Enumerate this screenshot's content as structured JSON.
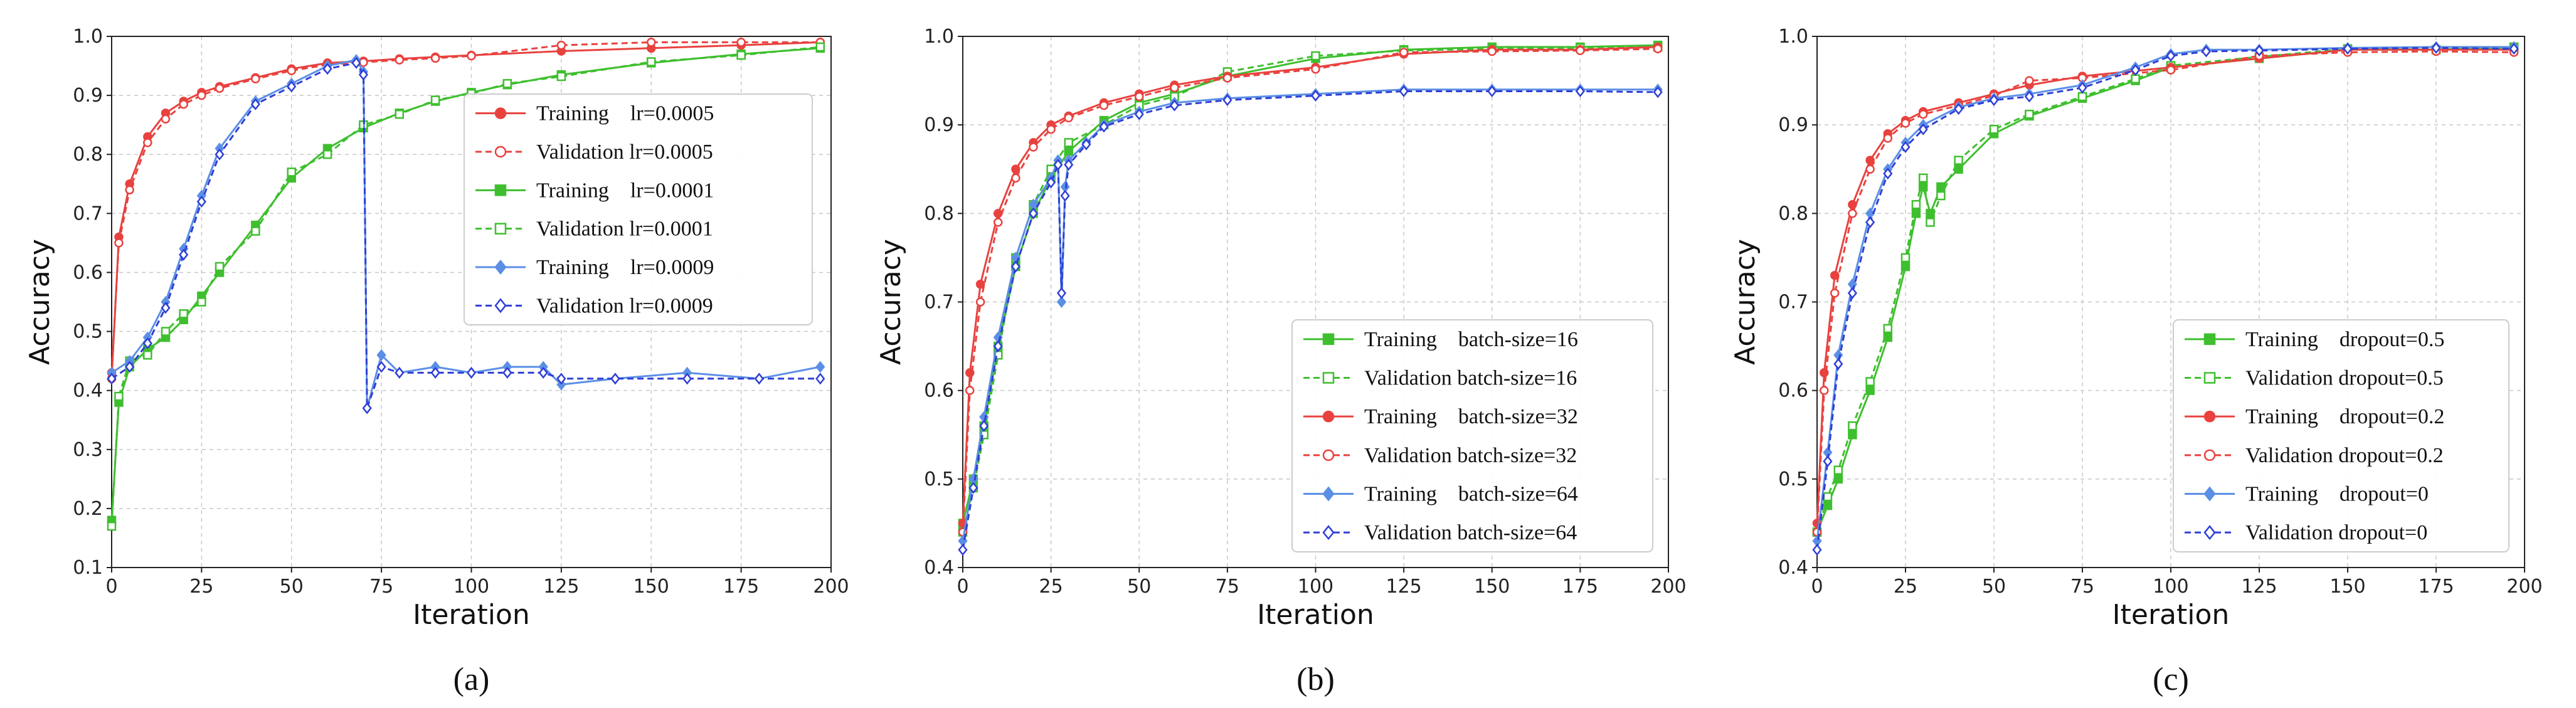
{
  "chart_data": [
    {
      "type": "line",
      "panel_label": "(a)",
      "xlabel": "Iteration",
      "ylabel": "Accuracy",
      "xlim": [
        0,
        200
      ],
      "ylim": [
        0.1,
        1.0
      ],
      "xticks": [
        "0",
        "25",
        "50",
        "75",
        "100",
        "125",
        "150",
        "175",
        "200"
      ],
      "yticks": [
        "0.1",
        "0.2",
        "0.3",
        "0.4",
        "0.5",
        "0.6",
        "0.7",
        "0.8",
        "0.9",
        "1.0"
      ],
      "grid": true,
      "legend_position": "center-right",
      "series": [
        {
          "name": "Training    lr=0.0005",
          "color": "#e8423f",
          "marker": "circle",
          "filled": true,
          "dashed": false,
          "x": [
            0,
            2,
            5,
            10,
            15,
            20,
            25,
            30,
            40,
            50,
            60,
            70,
            80,
            90,
            100,
            125,
            150,
            175,
            197
          ],
          "y": [
            0.42,
            0.66,
            0.75,
            0.83,
            0.87,
            0.89,
            0.905,
            0.915,
            0.93,
            0.945,
            0.955,
            0.958,
            0.962,
            0.965,
            0.968,
            0.975,
            0.98,
            0.985,
            0.99
          ]
        },
        {
          "name": "Validation lr=0.0005",
          "color": "#e8423f",
          "marker": "circle",
          "filled": false,
          "dashed": true,
          "x": [
            0,
            2,
            5,
            10,
            15,
            20,
            25,
            30,
            40,
            50,
            60,
            70,
            80,
            90,
            100,
            125,
            150,
            175,
            197
          ],
          "y": [
            0.43,
            0.65,
            0.74,
            0.82,
            0.86,
            0.885,
            0.9,
            0.912,
            0.928,
            0.942,
            0.952,
            0.956,
            0.96,
            0.963,
            0.967,
            0.985,
            0.99,
            0.99,
            0.99
          ]
        },
        {
          "name": "Training    lr=0.0001",
          "color": "#3fbf2f",
          "marker": "square",
          "filled": true,
          "dashed": false,
          "x": [
            0,
            2,
            5,
            10,
            15,
            20,
            25,
            30,
            40,
            50,
            60,
            70,
            80,
            90,
            100,
            110,
            125,
            150,
            175,
            197
          ],
          "y": [
            0.18,
            0.38,
            0.44,
            0.47,
            0.49,
            0.52,
            0.56,
            0.6,
            0.68,
            0.76,
            0.81,
            0.845,
            0.87,
            0.89,
            0.905,
            0.918,
            0.935,
            0.955,
            0.97,
            0.98
          ]
        },
        {
          "name": "Validation lr=0.0001",
          "color": "#3fbf2f",
          "marker": "square",
          "filled": false,
          "dashed": true,
          "x": [
            0,
            2,
            5,
            10,
            15,
            20,
            25,
            30,
            40,
            50,
            60,
            70,
            80,
            90,
            100,
            110,
            125,
            150,
            175,
            197
          ],
          "y": [
            0.17,
            0.39,
            0.45,
            0.46,
            0.5,
            0.53,
            0.55,
            0.61,
            0.67,
            0.77,
            0.8,
            0.85,
            0.868,
            0.892,
            0.903,
            0.92,
            0.932,
            0.957,
            0.968,
            0.982
          ]
        },
        {
          "name": "Training    lr=0.0009",
          "color": "#5b8fe6",
          "marker": "diamond",
          "filled": true,
          "dashed": false,
          "x": [
            0,
            5,
            10,
            15,
            20,
            25,
            30,
            40,
            50,
            60,
            68,
            70,
            71,
            75,
            80,
            90,
            100,
            110,
            120,
            125,
            140,
            160,
            180,
            197
          ],
          "y": [
            0.43,
            0.45,
            0.49,
            0.55,
            0.64,
            0.73,
            0.81,
            0.89,
            0.92,
            0.95,
            0.96,
            0.94,
            0.37,
            0.46,
            0.43,
            0.44,
            0.43,
            0.44,
            0.44,
            0.41,
            0.42,
            0.43,
            0.42,
            0.44
          ]
        },
        {
          "name": "Validation lr=0.0009",
          "color": "#2f3fd6",
          "marker": "diamond",
          "filled": false,
          "dashed": true,
          "x": [
            0,
            5,
            10,
            15,
            20,
            25,
            30,
            40,
            50,
            60,
            68,
            70,
            71,
            75,
            80,
            90,
            100,
            110,
            120,
            125,
            140,
            160,
            180,
            197
          ],
          "y": [
            0.42,
            0.44,
            0.48,
            0.54,
            0.63,
            0.72,
            0.8,
            0.885,
            0.915,
            0.945,
            0.955,
            0.935,
            0.37,
            0.44,
            0.43,
            0.43,
            0.43,
            0.43,
            0.43,
            0.42,
            0.42,
            0.42,
            0.42,
            0.42
          ]
        }
      ]
    },
    {
      "type": "line",
      "panel_label": "(b)",
      "xlabel": "Iteration",
      "ylabel": "Accuracy",
      "xlim": [
        0,
        200
      ],
      "ylim": [
        0.4,
        1.0
      ],
      "xticks": [
        "0",
        "25",
        "50",
        "75",
        "100",
        "125",
        "150",
        "175",
        "200"
      ],
      "yticks": [
        "0.4",
        "0.5",
        "0.6",
        "0.7",
        "0.8",
        "0.9",
        "1.0"
      ],
      "grid": true,
      "legend_position": "bottom-right",
      "series": [
        {
          "name": "Training    batch-size=16",
          "color": "#3fbf2f",
          "marker": "square",
          "filled": true,
          "dashed": false,
          "x": [
            0,
            3,
            6,
            10,
            15,
            20,
            25,
            30,
            40,
            50,
            60,
            75,
            100,
            125,
            150,
            175,
            197
          ],
          "y": [
            0.45,
            0.5,
            0.56,
            0.65,
            0.74,
            0.8,
            0.84,
            0.87,
            0.905,
            0.925,
            0.935,
            0.955,
            0.975,
            0.985,
            0.988,
            0.988,
            0.99
          ]
        },
        {
          "name": "Validation batch-size=16",
          "color": "#3fbf2f",
          "marker": "square",
          "filled": false,
          "dashed": true,
          "x": [
            0,
            3,
            6,
            10,
            15,
            20,
            25,
            30,
            40,
            50,
            60,
            75,
            100,
            125,
            150,
            175,
            197
          ],
          "y": [
            0.44,
            0.49,
            0.55,
            0.64,
            0.75,
            0.81,
            0.85,
            0.88,
            0.9,
            0.922,
            0.932,
            0.96,
            0.978,
            0.984,
            0.986,
            0.987,
            0.988
          ]
        },
        {
          "name": "Training    batch-size=32",
          "color": "#e8423f",
          "marker": "circle",
          "filled": true,
          "dashed": false,
          "x": [
            0,
            2,
            5,
            10,
            15,
            20,
            25,
            30,
            40,
            50,
            60,
            75,
            100,
            125,
            150,
            175,
            197
          ],
          "y": [
            0.45,
            0.62,
            0.72,
            0.8,
            0.85,
            0.88,
            0.9,
            0.91,
            0.925,
            0.935,
            0.945,
            0.955,
            0.965,
            0.98,
            0.985,
            0.985,
            0.988
          ]
        },
        {
          "name": "Validation batch-size=32",
          "color": "#e8423f",
          "marker": "circle",
          "filled": false,
          "dashed": true,
          "x": [
            0,
            2,
            5,
            10,
            15,
            20,
            25,
            30,
            40,
            50,
            60,
            75,
            100,
            125,
            150,
            175,
            197
          ],
          "y": [
            0.44,
            0.6,
            0.7,
            0.79,
            0.84,
            0.875,
            0.895,
            0.908,
            0.922,
            0.932,
            0.942,
            0.953,
            0.963,
            0.982,
            0.983,
            0.984,
            0.986
          ]
        },
        {
          "name": "Training    batch-size=64",
          "color": "#5b8fe6",
          "marker": "diamond",
          "filled": true,
          "dashed": false,
          "x": [
            0,
            3,
            6,
            10,
            15,
            20,
            25,
            27,
            28,
            29,
            30,
            35,
            40,
            50,
            60,
            75,
            100,
            125,
            150,
            175,
            197
          ],
          "y": [
            0.43,
            0.5,
            0.57,
            0.66,
            0.75,
            0.81,
            0.84,
            0.86,
            0.7,
            0.83,
            0.86,
            0.88,
            0.9,
            0.915,
            0.925,
            0.93,
            0.935,
            0.94,
            0.94,
            0.94,
            0.94
          ]
        },
        {
          "name": "Validation batch-size=64",
          "color": "#2f3fd6",
          "marker": "diamond",
          "filled": false,
          "dashed": true,
          "x": [
            0,
            3,
            6,
            10,
            15,
            20,
            25,
            27,
            28,
            29,
            30,
            35,
            40,
            50,
            60,
            75,
            100,
            125,
            150,
            175,
            197
          ],
          "y": [
            0.42,
            0.49,
            0.56,
            0.65,
            0.74,
            0.8,
            0.835,
            0.855,
            0.71,
            0.82,
            0.855,
            0.878,
            0.898,
            0.912,
            0.922,
            0.928,
            0.933,
            0.938,
            0.938,
            0.938,
            0.937
          ]
        }
      ]
    },
    {
      "type": "line",
      "panel_label": "(c)",
      "xlabel": "Iteration",
      "ylabel": "Accuracy",
      "xlim": [
        0,
        200
      ],
      "ylim": [
        0.4,
        1.0
      ],
      "xticks": [
        "0",
        "25",
        "50",
        "75",
        "100",
        "125",
        "150",
        "175",
        "200"
      ],
      "yticks": [
        "0.4",
        "0.5",
        "0.6",
        "0.7",
        "0.8",
        "0.9",
        "1.0"
      ],
      "grid": true,
      "legend_position": "bottom-right",
      "series": [
        {
          "name": "Training    dropout=0.5",
          "color": "#3fbf2f",
          "marker": "square",
          "filled": true,
          "dashed": false,
          "x": [
            0,
            3,
            6,
            10,
            15,
            20,
            25,
            28,
            30,
            32,
            35,
            40,
            50,
            60,
            75,
            90,
            100,
            125,
            150,
            175,
            197
          ],
          "y": [
            0.44,
            0.47,
            0.5,
            0.55,
            0.6,
            0.66,
            0.74,
            0.8,
            0.83,
            0.8,
            0.83,
            0.85,
            0.89,
            0.91,
            0.93,
            0.95,
            0.965,
            0.975,
            0.985,
            0.985,
            0.988
          ]
        },
        {
          "name": "Validation dropout=0.5",
          "color": "#3fbf2f",
          "marker": "square",
          "filled": false,
          "dashed": true,
          "x": [
            0,
            3,
            6,
            10,
            15,
            20,
            25,
            28,
            30,
            32,
            35,
            40,
            50,
            60,
            75,
            90,
            100,
            125,
            150,
            175,
            197
          ],
          "y": [
            0.44,
            0.48,
            0.51,
            0.56,
            0.61,
            0.67,
            0.75,
            0.81,
            0.84,
            0.79,
            0.82,
            0.86,
            0.895,
            0.912,
            0.932,
            0.952,
            0.967,
            0.977,
            0.986,
            0.985,
            0.987
          ]
        },
        {
          "name": "Training    dropout=0.2",
          "color": "#e8423f",
          "marker": "circle",
          "filled": true,
          "dashed": false,
          "x": [
            0,
            2,
            5,
            10,
            15,
            20,
            25,
            30,
            40,
            50,
            60,
            75,
            100,
            125,
            150,
            175,
            197
          ],
          "y": [
            0.45,
            0.62,
            0.73,
            0.81,
            0.86,
            0.89,
            0.905,
            0.915,
            0.925,
            0.935,
            0.945,
            0.955,
            0.965,
            0.975,
            0.985,
            0.985,
            0.985
          ]
        },
        {
          "name": "Validation dropout=0.2",
          "color": "#e8423f",
          "marker": "circle",
          "filled": false,
          "dashed": true,
          "x": [
            0,
            2,
            5,
            10,
            15,
            20,
            25,
            30,
            40,
            50,
            60,
            75,
            100,
            125,
            150,
            175,
            197
          ],
          "y": [
            0.44,
            0.6,
            0.71,
            0.8,
            0.85,
            0.885,
            0.902,
            0.912,
            0.922,
            0.933,
            0.95,
            0.953,
            0.962,
            0.978,
            0.982,
            0.983,
            0.982
          ]
        },
        {
          "name": "Training    dropout=0",
          "color": "#5b8fe6",
          "marker": "diamond",
          "filled": true,
          "dashed": false,
          "x": [
            0,
            3,
            6,
            10,
            15,
            20,
            25,
            30,
            40,
            50,
            60,
            75,
            90,
            100,
            110,
            125,
            150,
            175,
            197
          ],
          "y": [
            0.43,
            0.53,
            0.64,
            0.72,
            0.8,
            0.85,
            0.88,
            0.9,
            0.92,
            0.93,
            0.935,
            0.945,
            0.965,
            0.98,
            0.985,
            0.985,
            0.987,
            0.988,
            0.988
          ]
        },
        {
          "name": "Validation dropout=0",
          "color": "#2f3fd6",
          "marker": "diamond",
          "filled": false,
          "dashed": true,
          "x": [
            0,
            3,
            6,
            10,
            15,
            20,
            25,
            30,
            40,
            50,
            60,
            75,
            90,
            100,
            110,
            125,
            150,
            175,
            197
          ],
          "y": [
            0.42,
            0.52,
            0.63,
            0.71,
            0.79,
            0.845,
            0.875,
            0.895,
            0.918,
            0.928,
            0.932,
            0.942,
            0.962,
            0.978,
            0.983,
            0.984,
            0.986,
            0.987,
            0.986
          ]
        }
      ]
    }
  ]
}
